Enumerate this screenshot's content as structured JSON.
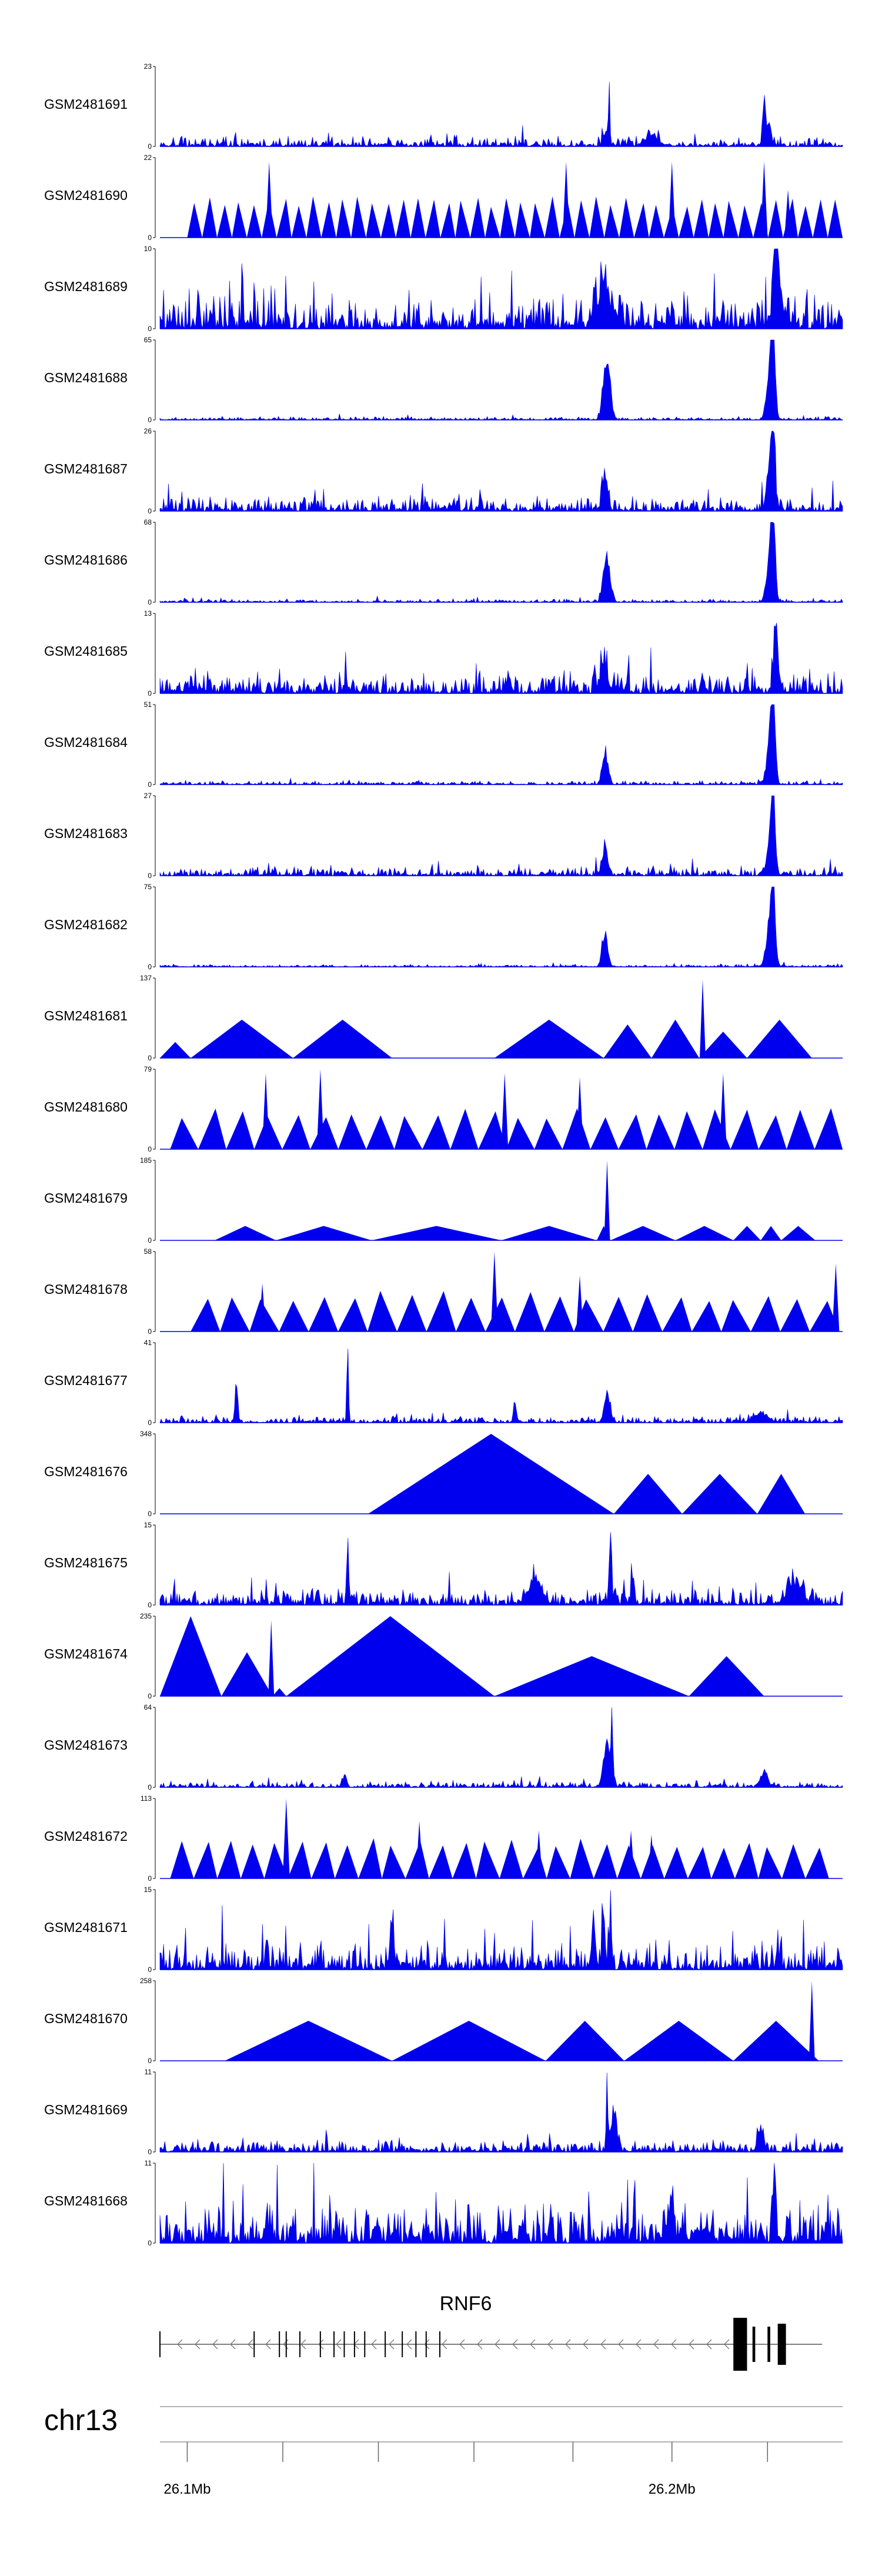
{
  "chart_data": {
    "type": "area",
    "title": "",
    "colors": {
      "signal": "#0000ee",
      "axis": "#000000",
      "gene": "#000000",
      "track_line": "#999999"
    },
    "x_range_bp": [
      26095000,
      26237000
    ],
    "tracks": [
      {
        "name": "GSM2481691",
        "ymax": 23,
        "style": "noisy",
        "baseline": 0.08,
        "peaks": [
          [
            0.658,
            1.0,
            0.0008
          ],
          [
            0.654,
            0.22,
            0.003
          ],
          [
            0.885,
            0.45,
            0.002
          ],
          [
            0.89,
            0.22,
            0.005
          ],
          [
            0.72,
            0.14,
            0.01
          ]
        ]
      },
      {
        "name": "GSM2481690",
        "ymax": 22,
        "style": "sawtooth",
        "n": 44,
        "start": 0.04,
        "end": 1.0,
        "spikes": [
          [
            0.16,
            0.95
          ],
          [
            0.595,
            0.95
          ],
          [
            0.75,
            0.95
          ],
          [
            0.885,
            0.95
          ],
          [
            0.92,
            0.6
          ]
        ]
      },
      {
        "name": "GSM2481689",
        "ymax": 10,
        "style": "noisy",
        "baseline": 0.3,
        "peaks": [
          [
            0.902,
            0.9,
            0.003
          ],
          [
            0.905,
            0.55,
            0.006
          ],
          [
            0.65,
            0.5,
            0.01
          ]
        ]
      },
      {
        "name": "GSM2481688",
        "ymax": 65,
        "style": "noisy",
        "baseline": 0.025,
        "peaks": [
          [
            0.652,
            0.6,
            0.004
          ],
          [
            0.658,
            0.45,
            0.004
          ],
          [
            0.898,
            1.0,
            0.003
          ],
          [
            0.894,
            0.6,
            0.005
          ]
        ]
      },
      {
        "name": "GSM2481687",
        "ymax": 26,
        "style": "noisy",
        "baseline": 0.12,
        "peaks": [
          [
            0.652,
            0.45,
            0.004
          ],
          [
            0.898,
            0.95,
            0.003
          ],
          [
            0.894,
            0.5,
            0.005
          ]
        ]
      },
      {
        "name": "GSM2481686",
        "ymax": 68,
        "style": "noisy",
        "baseline": 0.025,
        "peaks": [
          [
            0.652,
            0.45,
            0.004
          ],
          [
            0.658,
            0.3,
            0.004
          ],
          [
            0.898,
            1.0,
            0.003
          ],
          [
            0.894,
            0.6,
            0.005
          ]
        ]
      },
      {
        "name": "GSM2481685",
        "ymax": 13,
        "style": "noisy",
        "baseline": 0.18,
        "peaks": [
          [
            0.902,
            0.9,
            0.003
          ],
          [
            0.65,
            0.45,
            0.005
          ]
        ]
      },
      {
        "name": "GSM2481684",
        "ymax": 51,
        "style": "noisy",
        "baseline": 0.03,
        "peaks": [
          [
            0.652,
            0.45,
            0.004
          ],
          [
            0.898,
            1.0,
            0.003
          ],
          [
            0.894,
            0.6,
            0.005
          ]
        ]
      },
      {
        "name": "GSM2481683",
        "ymax": 27,
        "style": "noisy",
        "baseline": 0.07,
        "peaks": [
          [
            0.652,
            0.33,
            0.004
          ],
          [
            0.898,
            0.95,
            0.003
          ],
          [
            0.894,
            0.4,
            0.005
          ]
        ]
      },
      {
        "name": "GSM2481682",
        "ymax": 75,
        "style": "noisy",
        "baseline": 0.02,
        "peaks": [
          [
            0.652,
            0.45,
            0.004
          ],
          [
            0.898,
            1.0,
            0.003
          ],
          [
            0.894,
            0.6,
            0.005
          ]
        ]
      },
      {
        "name": "GSM2481681",
        "ymax": 137,
        "style": "triangles",
        "tris": [
          [
            0.0,
            0.045,
            0.2
          ],
          [
            0.045,
            0.195,
            0.48
          ],
          [
            0.195,
            0.34,
            0.48
          ],
          [
            0.49,
            0.65,
            0.48
          ],
          [
            0.65,
            0.72,
            0.42
          ],
          [
            0.72,
            0.79,
            0.48
          ],
          [
            0.79,
            0.86,
            0.33
          ],
          [
            0.86,
            0.955,
            0.48
          ]
        ],
        "spikes": [
          [
            0.795,
            0.98
          ]
        ]
      },
      {
        "name": "GSM2481680",
        "ymax": 79,
        "style": "sawtooth",
        "n": 24,
        "start": 0.015,
        "end": 1.0,
        "spikes": [
          [
            0.155,
            0.95
          ],
          [
            0.235,
            1.0
          ],
          [
            0.505,
            0.95
          ],
          [
            0.615,
            0.9
          ],
          [
            0.825,
            0.95
          ]
        ]
      },
      {
        "name": "GSM2481679",
        "ymax": 185,
        "style": "triangles",
        "tris": [
          [
            0.08,
            0.17,
            0.18
          ],
          [
            0.17,
            0.31,
            0.18
          ],
          [
            0.31,
            0.5,
            0.18
          ],
          [
            0.5,
            0.64,
            0.18
          ],
          [
            0.64,
            0.66,
            0.18
          ],
          [
            0.66,
            0.755,
            0.18
          ],
          [
            0.755,
            0.84,
            0.18
          ],
          [
            0.84,
            0.88,
            0.18
          ],
          [
            0.88,
            0.91,
            0.18
          ],
          [
            0.91,
            0.96,
            0.18
          ]
        ],
        "spikes": [
          [
            0.655,
            1.0
          ]
        ]
      },
      {
        "name": "GSM2481678",
        "ymax": 58,
        "style": "sawtooth",
        "n": 22,
        "start": 0.045,
        "end": 0.995,
        "spikes": [
          [
            0.15,
            0.6
          ],
          [
            0.49,
            1.0
          ],
          [
            0.615,
            0.7
          ],
          [
            0.99,
            0.85
          ]
        ]
      },
      {
        "name": "GSM2481677",
        "ymax": 41,
        "style": "noisy",
        "baseline": 0.05,
        "peaks": [
          [
            0.275,
            1.0,
            0.0012
          ],
          [
            0.112,
            0.55,
            0.002
          ],
          [
            0.655,
            0.4,
            0.004
          ],
          [
            0.52,
            0.3,
            0.002
          ],
          [
            0.88,
            0.12,
            0.01
          ]
        ]
      },
      {
        "name": "GSM2481676",
        "ymax": 348,
        "style": "triangles",
        "tris": [
          [
            0.305,
            0.665,
            1.0
          ],
          [
            0.665,
            0.765,
            0.5
          ],
          [
            0.765,
            0.875,
            0.5
          ],
          [
            0.875,
            0.945,
            0.5
          ]
        ],
        "spikes": []
      },
      {
        "name": "GSM2481675",
        "ymax": 15,
        "style": "noisy",
        "baseline": 0.14,
        "peaks": [
          [
            0.275,
            0.95,
            0.0012
          ],
          [
            0.66,
            0.85,
            0.002
          ],
          [
            0.55,
            0.3,
            0.01
          ],
          [
            0.93,
            0.3,
            0.01
          ]
        ]
      },
      {
        "name": "GSM2481674",
        "ymax": 235,
        "style": "triangles",
        "tris": [
          [
            0.0,
            0.09,
            1.0
          ],
          [
            0.09,
            0.165,
            0.55
          ],
          [
            0.165,
            0.185,
            0.1
          ],
          [
            0.185,
            0.49,
            1.0
          ],
          [
            0.49,
            0.775,
            0.5
          ],
          [
            0.775,
            0.885,
            0.5
          ]
        ],
        "spikes": [
          [
            0.163,
            0.95
          ]
        ]
      },
      {
        "name": "GSM2481673",
        "ymax": 64,
        "style": "noisy",
        "baseline": 0.05,
        "peaks": [
          [
            0.662,
            0.98,
            0.0012
          ],
          [
            0.655,
            0.55,
            0.005
          ],
          [
            0.885,
            0.2,
            0.005
          ],
          [
            0.27,
            0.15,
            0.003
          ]
        ]
      },
      {
        "name": "GSM2481672",
        "ymax": 113,
        "style": "sawtooth",
        "n": 28,
        "start": 0.015,
        "end": 0.98,
        "spikes": [
          [
            0.185,
            1.0
          ],
          [
            0.38,
            0.72
          ],
          [
            0.555,
            0.6
          ],
          [
            0.69,
            0.6
          ],
          [
            0.72,
            0.55
          ]
        ]
      },
      {
        "name": "GSM2481671",
        "ymax": 15,
        "style": "noisy",
        "baseline": 0.22,
        "peaks": [
          [
            0.66,
            1.0,
            0.0012
          ],
          [
            0.65,
            0.7,
            0.002
          ],
          [
            0.635,
            0.6,
            0.003
          ],
          [
            0.34,
            0.5,
            0.003
          ]
        ]
      },
      {
        "name": "GSM2481670",
        "ymax": 258,
        "style": "triangles",
        "tris": [
          [
            0.095,
            0.34,
            0.5
          ],
          [
            0.34,
            0.565,
            0.5
          ],
          [
            0.565,
            0.68,
            0.5
          ],
          [
            0.68,
            0.84,
            0.5
          ],
          [
            0.84,
            0.965,
            0.5
          ]
        ],
        "spikes": [
          [
            0.955,
            1.0
          ]
        ]
      },
      {
        "name": "GSM2481669",
        "ymax": 11,
        "style": "noisy",
        "baseline": 0.1,
        "peaks": [
          [
            0.655,
            0.98,
            0.0012
          ],
          [
            0.665,
            0.55,
            0.004
          ],
          [
            0.88,
            0.35,
            0.004
          ]
        ]
      },
      {
        "name": "GSM2481668",
        "ymax": 11,
        "style": "noisy",
        "baseline": 0.35,
        "peaks": [
          [
            0.9,
            0.95,
            0.002
          ],
          [
            0.75,
            0.6,
            0.003
          ]
        ]
      }
    ],
    "gene": {
      "name": "RNF6",
      "exon_positions": [
        0.0,
        0.138,
        0.175,
        0.185,
        0.205,
        0.235,
        0.255,
        0.27,
        0.285,
        0.3,
        0.33,
        0.355,
        0.375,
        0.39,
        0.41
      ],
      "big_exons": [
        [
          0.84,
          0.86,
          0.9
        ],
        [
          0.868,
          0.872,
          0.6
        ],
        [
          0.89,
          0.894,
          0.6
        ],
        [
          0.905,
          0.917,
          0.7
        ]
      ]
    },
    "chromosome": "chr13",
    "axis_ticks": [
      {
        "pos": 0.04,
        "label": "26.1Mb"
      },
      {
        "pos": 0.18,
        "label": ""
      },
      {
        "pos": 0.32,
        "label": ""
      },
      {
        "pos": 0.46,
        "label": ""
      },
      {
        "pos": 0.605,
        "label": ""
      },
      {
        "pos": 0.75,
        "label": "26.2Mb"
      },
      {
        "pos": 0.89,
        "label": ""
      }
    ]
  }
}
